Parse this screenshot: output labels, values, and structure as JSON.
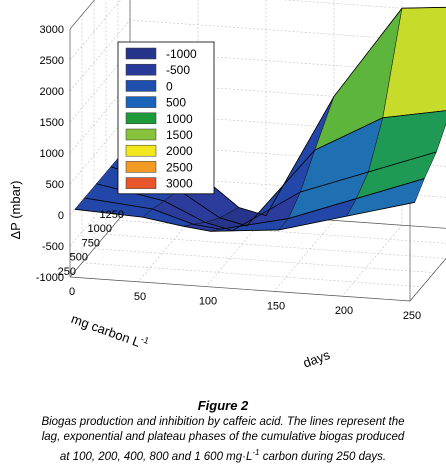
{
  "chart_data": {
    "type": "surface3d",
    "z_axis": {
      "label": "ΔP (mbar)",
      "ticks": [
        "3000",
        "2500",
        "2000",
        "1500",
        "1000",
        "500",
        "0",
        "-500",
        "-1000"
      ],
      "range": [
        -1000,
        3000
      ]
    },
    "x_axis": {
      "label": "days",
      "ticks": [
        "0",
        "50",
        "100",
        "150",
        "200",
        "250"
      ],
      "range": [
        0,
        250
      ]
    },
    "y_axis": {
      "label_main": "mg carbon L",
      "label_sup": "-1",
      "ticks": [
        "1250",
        "1000",
        "750",
        "500",
        "250"
      ],
      "range": [
        0,
        1250
      ]
    },
    "legend": {
      "placement": "top-left inside plot",
      "entries": [
        {
          "label": "-1000",
          "color": "#27348b"
        },
        {
          "label": "-500",
          "color": "#2a3a9a"
        },
        {
          "label": "0",
          "color": "#1f4fae"
        },
        {
          "label": "500",
          "color": "#1a64bc"
        },
        {
          "label": "1000",
          "color": "#1e9a3a"
        },
        {
          "label": "1500",
          "color": "#86c23a"
        },
        {
          "label": "2000",
          "color": "#f1e71c"
        },
        {
          "label": "2500",
          "color": "#f39a25"
        },
        {
          "label": "3000",
          "color": "#e8552a"
        }
      ]
    },
    "surface_rows": [
      {
        "carbon": 100,
        "days": [
          0,
          50,
          80,
          100,
          150,
          200,
          250
        ],
        "dP": [
          0,
          -50,
          -150,
          -200,
          -100,
          200,
          500
        ]
      },
      {
        "carbon": 200,
        "days": [
          0,
          50,
          80,
          100,
          150,
          200,
          250
        ],
        "dP": [
          0,
          -100,
          -300,
          -350,
          -100,
          300,
          700
        ]
      },
      {
        "carbon": 400,
        "days": [
          0,
          50,
          80,
          100,
          150,
          200,
          250
        ],
        "dP": [
          0,
          -200,
          -500,
          -600,
          100,
          500,
          900
        ]
      },
      {
        "carbon": 800,
        "days": [
          0,
          50,
          80,
          100,
          150,
          200,
          250
        ],
        "dP": [
          0,
          -300,
          -700,
          -800,
          500,
          1100,
          1300
        ]
      },
      {
        "carbon": 1600,
        "days": [
          0,
          50,
          80,
          100,
          150,
          200,
          250
        ],
        "dP": [
          0,
          -400,
          -900,
          -1000,
          1000,
          2500,
          2600
        ]
      }
    ]
  },
  "figure": {
    "title": "Figure 2",
    "caption_lines": [
      "Biogas production and inhibition by caffeic acid. The lines represent the",
      "lag, exponential and plateau phases of the cumulative biogas produced",
      "at 100, 200, 400, 800 and 1 600 mg·L"
    ],
    "caption_sup": "-1",
    "caption_end": " carbon during 250 days."
  }
}
